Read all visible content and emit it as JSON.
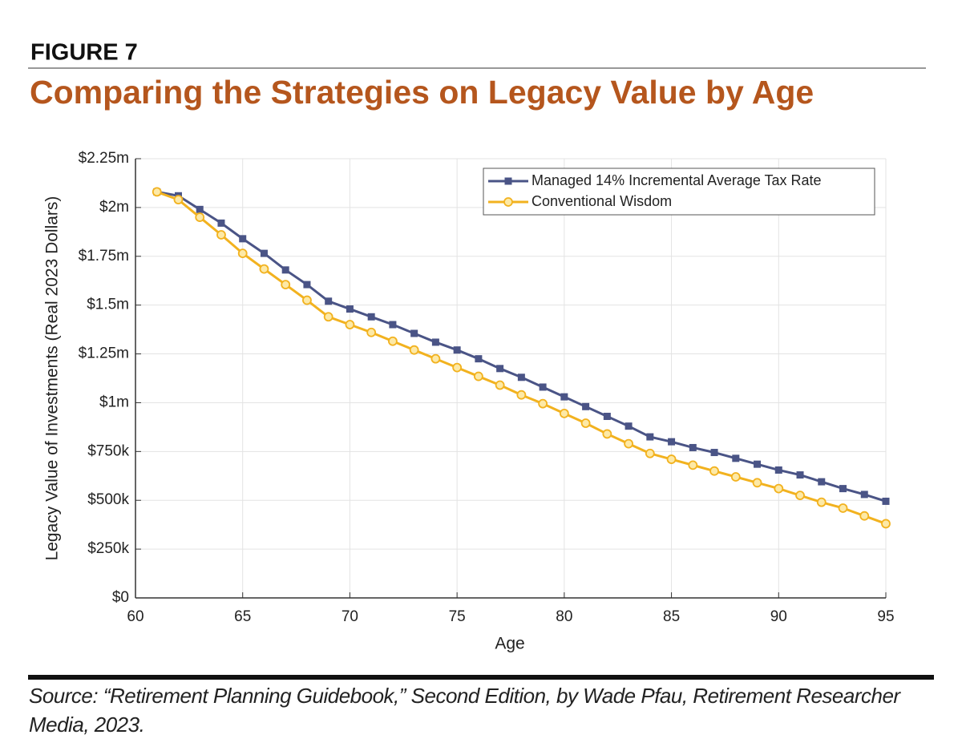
{
  "chart_data": {
    "type": "line",
    "figure_label": "FIGURE 7",
    "title": "Comparing the Strategies on Legacy Value by Age",
    "source": "Source: “Retirement Planning Guidebook,” Second Edition, by Wade Pfau, Retirement Researcher Media, 2023.",
    "x_label": "Age",
    "y_label": "Legacy Value of Investments (Real 2023 Dollars)",
    "x": [
      61,
      62,
      63,
      64,
      65,
      66,
      67,
      68,
      69,
      70,
      71,
      72,
      73,
      74,
      75,
      76,
      77,
      78,
      79,
      80,
      81,
      82,
      83,
      84,
      85,
      86,
      87,
      88,
      89,
      90,
      91,
      92,
      93,
      94,
      95
    ],
    "series": [
      {
        "name": "Managed 14% Incremental Average Tax Rate",
        "color": "#4a5486",
        "marker": "square",
        "values": [
          2080000,
          2060000,
          1990000,
          1920000,
          1840000,
          1765000,
          1680000,
          1605000,
          1520000,
          1480000,
          1440000,
          1400000,
          1355000,
          1310000,
          1270000,
          1225000,
          1175000,
          1130000,
          1080000,
          1030000,
          980000,
          930000,
          880000,
          825000,
          800000,
          770000,
          745000,
          715000,
          685000,
          655000,
          630000,
          595000,
          560000,
          530000,
          495000
        ]
      },
      {
        "name": "Conventional Wisdom",
        "color": "#f2b21f",
        "marker": "circle",
        "values": [
          2080000,
          2040000,
          1950000,
          1860000,
          1765000,
          1685000,
          1605000,
          1525000,
          1440000,
          1400000,
          1360000,
          1315000,
          1270000,
          1225000,
          1180000,
          1135000,
          1090000,
          1040000,
          995000,
          945000,
          895000,
          840000,
          790000,
          740000,
          710000,
          680000,
          650000,
          620000,
          590000,
          560000,
          525000,
          490000,
          460000,
          420000,
          380000
        ]
      }
    ],
    "xlim": [
      60,
      95
    ],
    "xticks": [
      60,
      65,
      70,
      75,
      80,
      85,
      90,
      95
    ],
    "ylim": [
      0,
      2250000
    ],
    "yticks": [
      {
        "value": 0,
        "label": "$0"
      },
      {
        "value": 250000,
        "label": "$250k"
      },
      {
        "value": 500000,
        "label": "$500k"
      },
      {
        "value": 750000,
        "label": "$750k"
      },
      {
        "value": 1000000,
        "label": "$1m"
      },
      {
        "value": 1250000,
        "label": "$1.25m"
      },
      {
        "value": 1500000,
        "label": "$1.5m"
      },
      {
        "value": 1750000,
        "label": "$1.75m"
      },
      {
        "value": 2000000,
        "label": "$2m"
      },
      {
        "value": 2250000,
        "label": "$2.25m"
      }
    ],
    "grid": true,
    "legend": "upper right",
    "title_color": "#b5561d"
  }
}
